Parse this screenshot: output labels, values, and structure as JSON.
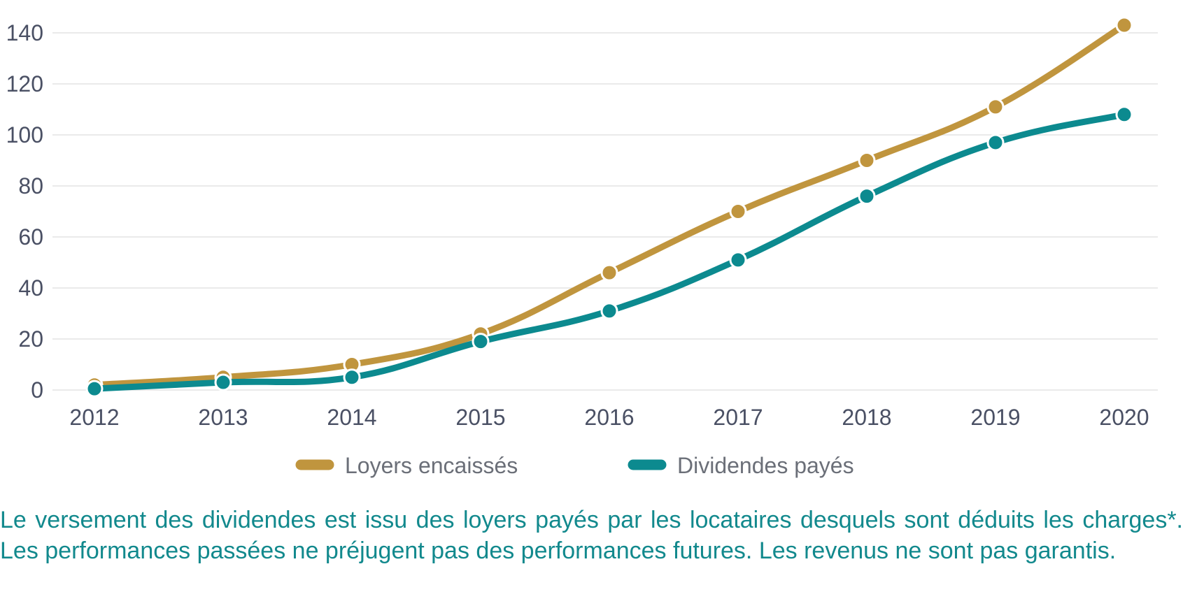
{
  "colors": {
    "loyers": "#c0953e",
    "dividendes": "#0c8a8f",
    "grid": "#e3e3e3",
    "axis_text": "#4a5064",
    "legend_text": "#6b6f78",
    "caption_text": "#12898d"
  },
  "chart_data": {
    "type": "line",
    "x": [
      "2012",
      "2013",
      "2014",
      "2015",
      "2016",
      "2017",
      "2018",
      "2019",
      "2020"
    ],
    "series": [
      {
        "name": "Loyers encaissés",
        "color": "#c0953e",
        "values": [
          2,
          5,
          10,
          22,
          46,
          70,
          90,
          111,
          143
        ]
      },
      {
        "name": "Dividendes payés",
        "color": "#0c8a8f",
        "values": [
          0.5,
          3,
          5,
          19,
          31,
          51,
          76,
          97,
          108
        ]
      }
    ],
    "yticks": [
      0,
      20,
      40,
      60,
      80,
      100,
      120,
      140
    ],
    "ylim": [
      0,
      145
    ],
    "grid": true,
    "legend_position": "bottom-center",
    "title": "",
    "xlabel": "",
    "ylabel": ""
  },
  "caption": {
    "text": "Le versement des dividendes est issu des loyers payés par les locataires desquels sont déduits les charges*. Les performances passées ne préjugent pas des performances futures. Les revenus ne sont pas garantis."
  }
}
